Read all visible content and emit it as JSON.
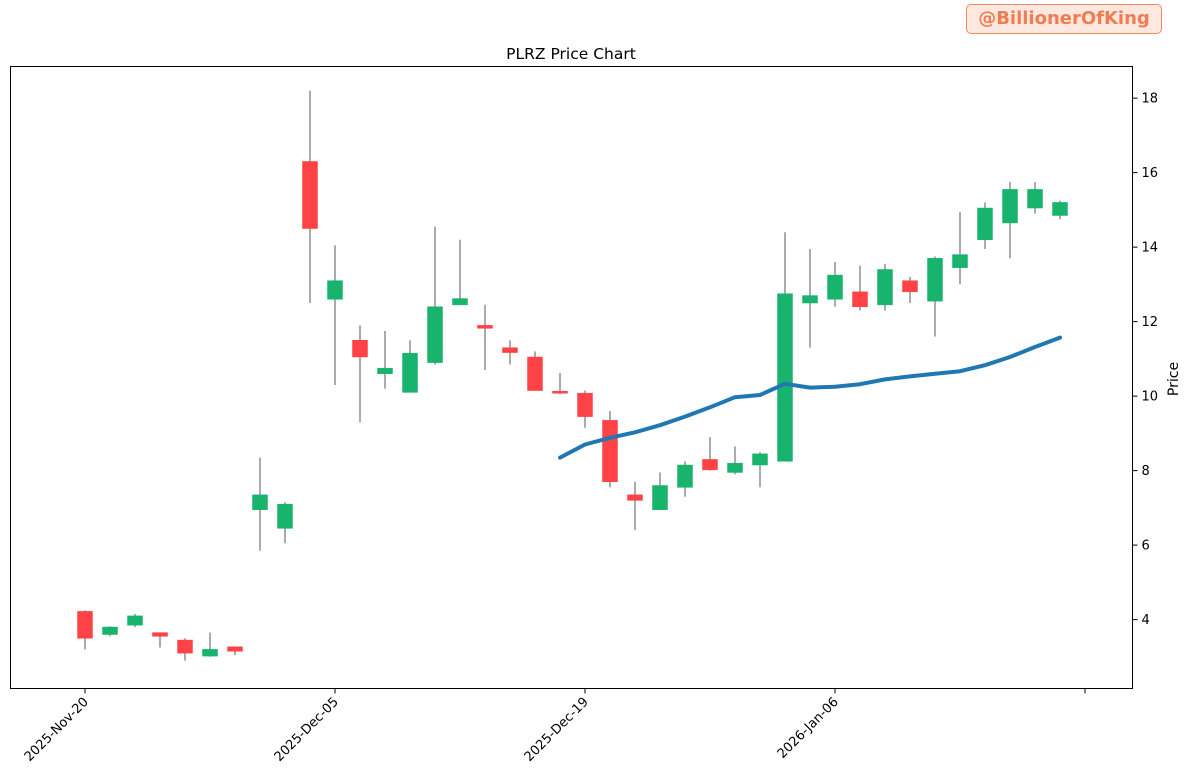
{
  "watermark": "@BillionerOfKing",
  "chart_data": {
    "type": "candlestick",
    "title": "PLRZ Price Chart",
    "xlabel": "",
    "ylabel": "Price",
    "y_axis_side": "right",
    "ylim": [
      2.15,
      18.85
    ],
    "yticks": [
      4,
      6,
      8,
      10,
      12,
      14,
      16,
      18
    ],
    "x_tick_labels": [
      {
        "index": 0,
        "label": "2025-Nov-20"
      },
      {
        "index": 10,
        "label": "2025-Dec-05"
      },
      {
        "index": 20,
        "label": "2025-Dec-19"
      },
      {
        "index": 30,
        "label": "2026-Jan-06"
      },
      {
        "index": 40,
        "label": ""
      }
    ],
    "grid": false,
    "colors": {
      "up": "#18b36d",
      "down": "#ff4245",
      "wick": "#666666",
      "ma": "#1f77b4"
    },
    "candles": [
      {
        "open": 4.22,
        "high": 4.25,
        "low": 3.2,
        "close": 3.5
      },
      {
        "open": 3.6,
        "high": 3.82,
        "low": 3.55,
        "close": 3.8
      },
      {
        "open": 3.85,
        "high": 4.15,
        "low": 3.8,
        "close": 4.1
      },
      {
        "open": 3.65,
        "high": 3.65,
        "low": 3.25,
        "close": 3.55
      },
      {
        "open": 3.45,
        "high": 3.5,
        "low": 2.9,
        "close": 3.1
      },
      {
        "open": 3.02,
        "high": 3.65,
        "low": 3.0,
        "close": 3.2
      },
      {
        "open": 3.27,
        "high": 3.28,
        "low": 3.05,
        "close": 3.15
      },
      {
        "open": 6.95,
        "high": 8.35,
        "low": 5.85,
        "close": 7.35
      },
      {
        "open": 6.45,
        "high": 7.15,
        "low": 6.05,
        "close": 7.1
      },
      {
        "open": 16.3,
        "high": 18.2,
        "low": 12.5,
        "close": 14.5
      },
      {
        "open": 12.6,
        "high": 14.05,
        "low": 10.3,
        "close": 13.1
      },
      {
        "open": 11.5,
        "high": 11.9,
        "low": 9.3,
        "close": 11.05
      },
      {
        "open": 10.6,
        "high": 11.75,
        "low": 10.2,
        "close": 10.75
      },
      {
        "open": 10.1,
        "high": 11.5,
        "low": 10.1,
        "close": 11.15
      },
      {
        "open": 10.9,
        "high": 14.55,
        "low": 10.85,
        "close": 12.4
      },
      {
        "open": 12.45,
        "high": 14.2,
        "low": 12.45,
        "close": 12.62
      },
      {
        "open": 11.9,
        "high": 12.45,
        "low": 10.7,
        "close": 11.82
      },
      {
        "open": 11.3,
        "high": 11.5,
        "low": 10.85,
        "close": 11.17
      },
      {
        "open": 11.05,
        "high": 11.2,
        "low": 10.15,
        "close": 10.15
      },
      {
        "open": 10.13,
        "high": 10.62,
        "low": 10.05,
        "close": 10.1
      },
      {
        "open": 10.08,
        "high": 10.15,
        "low": 9.15,
        "close": 9.45
      },
      {
        "open": 9.35,
        "high": 9.6,
        "low": 7.55,
        "close": 7.7
      },
      {
        "open": 7.35,
        "high": 7.7,
        "low": 6.4,
        "close": 7.2
      },
      {
        "open": 6.95,
        "high": 7.95,
        "low": 6.95,
        "close": 7.6
      },
      {
        "open": 7.55,
        "high": 8.25,
        "low": 7.3,
        "close": 8.15
      },
      {
        "open": 8.3,
        "high": 8.9,
        "low": 8.0,
        "close": 8.02
      },
      {
        "open": 7.95,
        "high": 8.65,
        "low": 7.9,
        "close": 8.2
      },
      {
        "open": 8.15,
        "high": 8.5,
        "low": 7.55,
        "close": 8.45
      },
      {
        "open": 8.25,
        "high": 14.4,
        "low": 8.25,
        "close": 12.75
      },
      {
        "open": 12.5,
        "high": 13.95,
        "low": 11.3,
        "close": 12.7
      },
      {
        "open": 12.6,
        "high": 13.6,
        "low": 12.4,
        "close": 13.25
      },
      {
        "open": 12.8,
        "high": 13.5,
        "low": 12.3,
        "close": 12.4
      },
      {
        "open": 12.45,
        "high": 13.55,
        "low": 12.3,
        "close": 13.4
      },
      {
        "open": 13.1,
        "high": 13.2,
        "low": 12.5,
        "close": 12.8
      },
      {
        "open": 12.55,
        "high": 13.75,
        "low": 11.6,
        "close": 13.7
      },
      {
        "open": 13.45,
        "high": 14.95,
        "low": 13.0,
        "close": 13.8
      },
      {
        "open": 14.2,
        "high": 15.2,
        "low": 13.95,
        "close": 15.05
      },
      {
        "open": 14.65,
        "high": 15.75,
        "low": 13.7,
        "close": 15.55
      },
      {
        "open": 15.05,
        "high": 15.75,
        "low": 14.9,
        "close": 15.55
      },
      {
        "open": 14.85,
        "high": 15.25,
        "low": 14.75,
        "close": 15.2
      }
    ],
    "moving_average": {
      "start_index": 19,
      "values": [
        8.35,
        8.7,
        8.88,
        9.03,
        9.22,
        9.45,
        9.7,
        9.97,
        10.03,
        10.33,
        10.23,
        10.25,
        10.32,
        10.45,
        10.53,
        10.6,
        10.67,
        10.83,
        11.05,
        11.32,
        11.57
      ]
    }
  }
}
